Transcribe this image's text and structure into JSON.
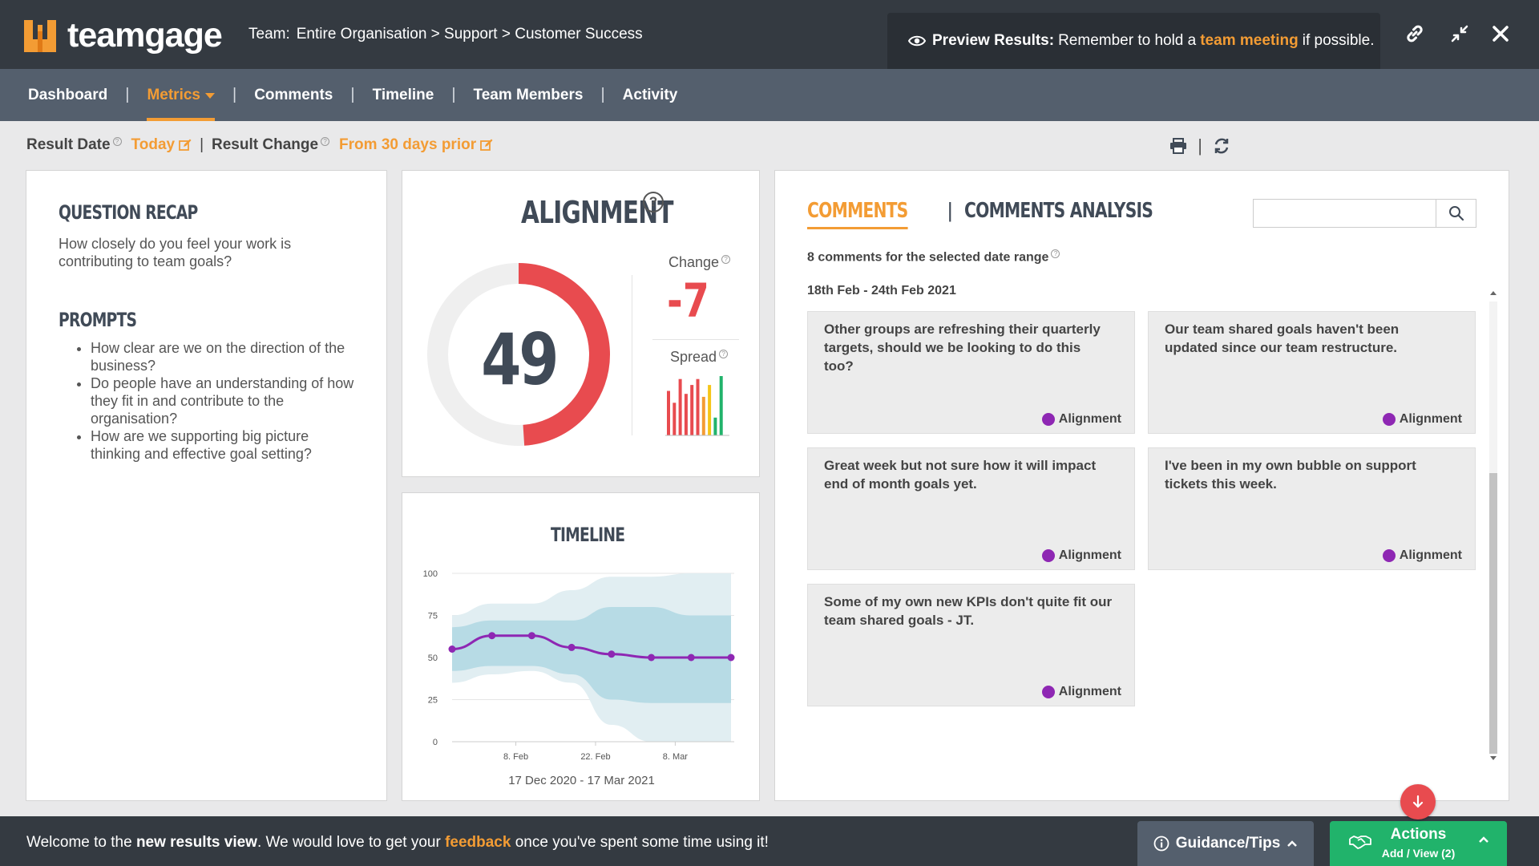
{
  "app": {
    "logo_text": "teamgage",
    "team_label": "Team:",
    "team_path": "Entire Organisation > Support > Customer Success"
  },
  "preview": {
    "label": "Preview Results:",
    "text_before": "Remember to hold a",
    "highlight": "team meeting",
    "text_after": "if possible."
  },
  "header_icons": [
    "link-icon",
    "compress-icon",
    "close-icon"
  ],
  "nav": {
    "items": [
      {
        "label": "Dashboard",
        "active": false
      },
      {
        "label": "Metrics",
        "active": true
      },
      {
        "label": "Comments",
        "active": false
      },
      {
        "label": "Timeline",
        "active": false
      },
      {
        "label": "Team Members",
        "active": false
      },
      {
        "label": "Activity",
        "active": false
      }
    ],
    "separator": "|"
  },
  "filters": {
    "result_date_label": "Result Date",
    "result_date_value": "Today",
    "result_change_label": "Result Change",
    "result_change_value": "From 30 days prior",
    "separator": "|"
  },
  "recap": {
    "title": "QUESTION RECAP",
    "question": "How closely do you feel your work is contributing to team goals?",
    "prompts_title": "PROMPTS",
    "prompts": [
      "How clear are we on the direction of the business?",
      "Do people have an understanding of how they fit in and contribute to the organisation?",
      "How are we supporting big picture thinking and effective goal setting?"
    ]
  },
  "alignment": {
    "title": "ALIGNMENT",
    "help": "?",
    "score": "49",
    "score_fraction": 0.49,
    "change_label": "Change",
    "change_value": "-7",
    "spread_label": "Spread",
    "spread_bars": [
      {
        "value": 0.75,
        "color": "#e84b4f"
      },
      {
        "value": 0.55,
        "color": "#e84b4f"
      },
      {
        "value": 0.95,
        "color": "#e84b4f"
      },
      {
        "value": 0.7,
        "color": "#e84b4f"
      },
      {
        "value": 0.85,
        "color": "#e84b4f"
      },
      {
        "value": 0.95,
        "color": "#e84b4f"
      },
      {
        "value": 0.65,
        "color": "#f39c34"
      },
      {
        "value": 0.85,
        "color": "#f5c518"
      },
      {
        "value": 0.3,
        "color": "#21b36b"
      },
      {
        "value": 1.0,
        "color": "#21b36b"
      }
    ]
  },
  "timeline": {
    "title": "TIMELINE",
    "range_text": "17 Dec 2020 - 17 Mar 2021"
  },
  "chart_data": {
    "type": "line",
    "title": "TIMELINE",
    "xlabel": "",
    "ylabel": "",
    "ylim": [
      0,
      100
    ],
    "y_ticks": [
      0,
      25,
      50,
      75,
      100
    ],
    "x_tick_labels": [
      "8. Feb",
      "22. Feb",
      "8. Mar"
    ],
    "grid": true,
    "series": [
      {
        "values": [
          55,
          63,
          63,
          56,
          52,
          50,
          50,
          50
        ],
        "color": "#8e27b3"
      }
    ],
    "bands": [
      {
        "upper": [
          75,
          82,
          82,
          90,
          98,
          98,
          100,
          100
        ],
        "lower": [
          35,
          40,
          42,
          35,
          10,
          0,
          0,
          0
        ],
        "color": "#e1eef2"
      },
      {
        "upper": [
          68,
          72,
          72,
          72,
          80,
          80,
          75,
          75
        ],
        "lower": [
          42,
          45,
          45,
          40,
          25,
          23,
          23,
          23
        ],
        "color": "#b7dbe5"
      }
    ]
  },
  "comments": {
    "tab_comments": "COMMENTS",
    "tab_analysis": "COMMENTS ANALYSIS",
    "tab_sep": "|",
    "search_placeholder": "",
    "count_text": "8 comments for the selected date range",
    "range": "18th Feb - 24th Feb 2021",
    "cards": [
      {
        "text": "Other groups are refreshing their quarterly targets, should we be looking to do this too?",
        "tag": "Alignment"
      },
      {
        "text": "Our team shared goals haven't been updated since our team restructure.",
        "tag": "Alignment"
      },
      {
        "text": "Great week but not sure how it will impact end of month goals yet.",
        "tag": "Alignment"
      },
      {
        "text": "I've been in my own bubble on support tickets this week.",
        "tag": "Alignment"
      },
      {
        "text": "Some of my own new KPIs don't quite fit our team shared goals - JT.",
        "tag": "Alignment"
      }
    ],
    "tag_color": "#8e27b3"
  },
  "footer": {
    "msg_1": "Welcome to the",
    "msg_bold": "new results view",
    "msg_2": ". We would love to get your",
    "msg_link": "feedback",
    "msg_3": "once you've spent some time using it!",
    "guidance": "Guidance/Tips",
    "actions_title": "Actions",
    "actions_sub": "Add / View (2)"
  },
  "colors": {
    "accent": "#f39c34",
    "header_bg": "#343a41",
    "nav_bg": "#545f6d",
    "score_red": "#e84b4f",
    "action_green": "#21b36b"
  }
}
